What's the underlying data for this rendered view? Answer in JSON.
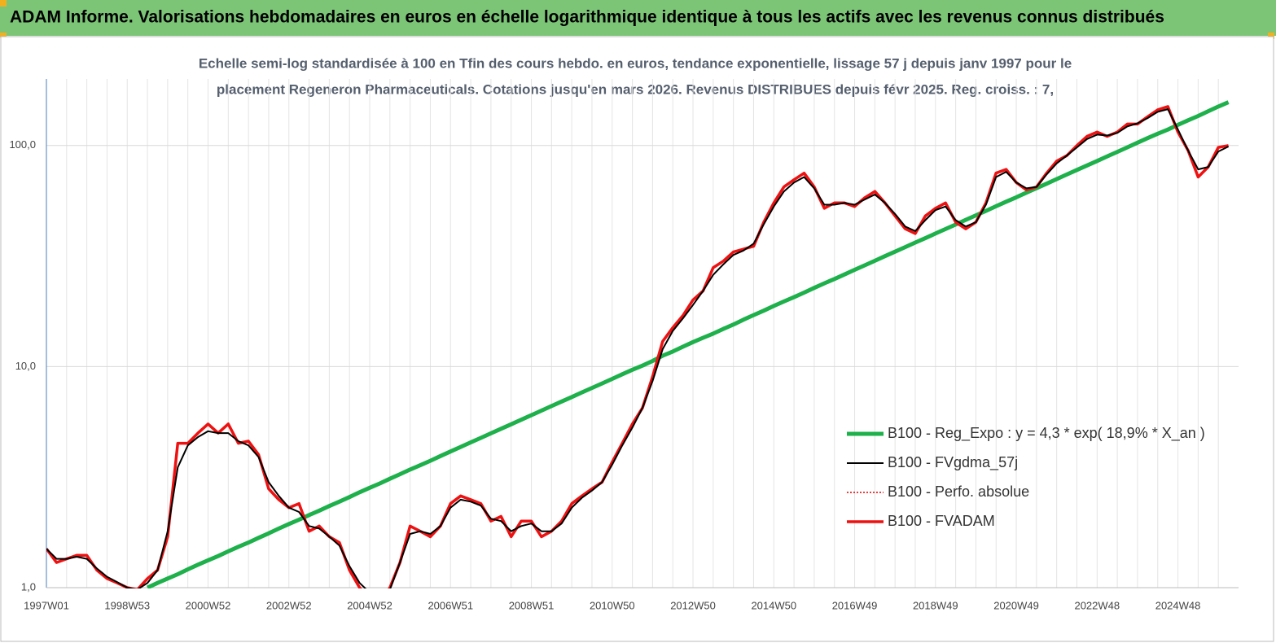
{
  "chart_data": {
    "type": "line",
    "header": "ADAM Informe. Valorisations hebdomadaires en euros en échelle logarithmique identique à tous les actifs avec les revenus connus distribués",
    "title": [
      "Echelle semi-log standardisée à 100 en Tfin des cours hebdo. en euros, tendance exponentielle, lissage 57 j depuis janv 1997 pour le",
      "placement Regeneron Pharmaceuticals. Cotations jusqu'en mars 2026. Revenus DISTRIBUES depuis févr 2025. Reg. croiss. : 7,"
    ],
    "log_scale": true,
    "grid": true,
    "legend_position": "right",
    "ylim": [
      1,
      200
    ],
    "yticks": [
      {
        "value": 1,
        "label": "1,0"
      },
      {
        "value": 10,
        "label": "10,0"
      },
      {
        "value": 100,
        "label": "100,0"
      }
    ],
    "categories": [
      "1997W01",
      null,
      null,
      null,
      null,
      null,
      null,
      null,
      "1998W53",
      null,
      null,
      null,
      null,
      null,
      null,
      null,
      "2000W52",
      null,
      null,
      null,
      null,
      null,
      null,
      null,
      "2002W52",
      null,
      null,
      null,
      null,
      null,
      null,
      null,
      "2004W52",
      null,
      null,
      null,
      null,
      null,
      null,
      null,
      "2006W51",
      null,
      null,
      null,
      null,
      null,
      null,
      null,
      "2008W51",
      null,
      null,
      null,
      null,
      null,
      null,
      null,
      "2010W50",
      null,
      null,
      null,
      null,
      null,
      null,
      null,
      "2012W50",
      null,
      null,
      null,
      null,
      null,
      null,
      null,
      "2014W50",
      null,
      null,
      null,
      null,
      null,
      null,
      null,
      "2016W49",
      null,
      null,
      null,
      null,
      null,
      null,
      null,
      "2018W49",
      null,
      null,
      null,
      null,
      null,
      null,
      null,
      "2020W49",
      null,
      null,
      null,
      null,
      null,
      null,
      null,
      "2022W48",
      null,
      null,
      null,
      null,
      null,
      null,
      null,
      "2024W48",
      null,
      null,
      null,
      null,
      null
    ],
    "series": [
      {
        "name": "B100 - Reg_Expo : y = 4,3 * exp( 18,9% *  X_an )",
        "color": "#1db04b",
        "width": 5,
        "style": "solid",
        "values": [
          null,
          null,
          null,
          null,
          null,
          null,
          null,
          null,
          null,
          null,
          1.0,
          1.05,
          1.1,
          1.15,
          1.21,
          1.27,
          1.33,
          1.39,
          1.46,
          1.53,
          1.6,
          1.68,
          1.76,
          1.85,
          1.94,
          2.03,
          2.13,
          2.23,
          2.34,
          2.45,
          2.57,
          2.7,
          2.83,
          2.96,
          3.11,
          3.26,
          3.42,
          3.58,
          3.75,
          3.94,
          4.13,
          4.33,
          4.54,
          4.76,
          4.99,
          5.23,
          5.48,
          5.75,
          6.03,
          6.32,
          6.63,
          6.95,
          7.28,
          7.64,
          8.01,
          8.39,
          8.8,
          9.23,
          9.67,
          10.1,
          10.6,
          11.2,
          11.7,
          12.3,
          12.9,
          13.5,
          14.1,
          14.8,
          15.5,
          16.3,
          17.1,
          17.9,
          18.8,
          19.7,
          20.6,
          21.6,
          22.7,
          23.8,
          24.9,
          26.1,
          27.4,
          28.7,
          30.1,
          31.6,
          33.1,
          34.7,
          36.4,
          38.1,
          40.0,
          41.9,
          43.9,
          46.1,
          48.3,
          50.6,
          53.1,
          55.7,
          58.3,
          61.2,
          64.1,
          67.2,
          70.5,
          73.9,
          77.5,
          81.2,
          85.1,
          89.3,
          93.6,
          98.1,
          103,
          108,
          113,
          118,
          124,
          130,
          136,
          143,
          150,
          157
        ]
      },
      {
        "name": "B100 - FVgdma_57j",
        "color": "#000000",
        "width": 2,
        "style": "solid",
        "values": [
          1.5,
          1.35,
          1.35,
          1.38,
          1.35,
          1.22,
          1.12,
          1.06,
          1.0,
          0.98,
          1.05,
          1.2,
          1.8,
          3.5,
          4.4,
          4.8,
          5.1,
          5.0,
          5.0,
          4.6,
          4.4,
          3.9,
          3.0,
          2.6,
          2.3,
          2.2,
          1.9,
          1.85,
          1.7,
          1.55,
          1.25,
          1.05,
          0.95,
          0.88,
          0.98,
          1.3,
          1.75,
          1.8,
          1.75,
          1.9,
          2.3,
          2.5,
          2.45,
          2.35,
          2.05,
          2.0,
          1.8,
          1.9,
          1.95,
          1.8,
          1.8,
          1.95,
          2.3,
          2.55,
          2.75,
          3.0,
          3.6,
          4.4,
          5.3,
          6.5,
          8.6,
          12,
          14.5,
          16.5,
          19,
          22,
          26,
          29,
          32,
          33.5,
          36,
          44,
          53,
          62,
          68,
          72,
          64,
          54,
          54,
          55,
          54,
          57,
          60,
          55,
          49,
          43,
          41,
          46,
          51,
          53,
          46,
          43,
          45,
          54,
          72,
          76,
          68,
          64,
          65,
          74,
          83,
          90,
          98,
          107,
          112,
          111,
          114,
          122,
          126,
          133,
          142,
          146,
          118,
          95,
          78,
          80,
          94,
          99
        ]
      },
      {
        "name": "B100 - Perfo. absolue",
        "color": "#e00000",
        "width": 1.5,
        "style": "dotted",
        "values": [
          1.5,
          1.3,
          1.35,
          1.4,
          1.4,
          1.2,
          1.1,
          1.05,
          1.0,
          0.98,
          1.1,
          1.2,
          1.7,
          4.5,
          4.5,
          5.0,
          5.5,
          5.0,
          5.5,
          4.5,
          4.6,
          4.0,
          2.8,
          2.5,
          2.3,
          2.4,
          1.8,
          1.9,
          1.7,
          1.6,
          1.2,
          1.0,
          0.9,
          0.85,
          1.0,
          1.3,
          1.9,
          1.8,
          1.7,
          1.9,
          2.4,
          2.6,
          2.5,
          2.4,
          2.0,
          2.1,
          1.7,
          2.0,
          2.0,
          1.7,
          1.8,
          2.0,
          2.4,
          2.6,
          2.8,
          3.0,
          3.7,
          4.5,
          5.5,
          6.5,
          9.0,
          13,
          15,
          17,
          20,
          22,
          28,
          30,
          33,
          34,
          35,
          45,
          55,
          65,
          70,
          75,
          65,
          52,
          55,
          55,
          53,
          58,
          62,
          55,
          48,
          42,
          40,
          48,
          52,
          55,
          45,
          42,
          45,
          55,
          75,
          78,
          68,
          63,
          65,
          75,
          85,
          90,
          100,
          110,
          115,
          110,
          115,
          125,
          125,
          135,
          145,
          150,
          115,
          95,
          72,
          80,
          98,
          100
        ]
      },
      {
        "name": "B100 - FVADAM",
        "color": "#ee1111",
        "width": 3.5,
        "style": "solid",
        "values": [
          1.5,
          1.3,
          1.35,
          1.4,
          1.4,
          1.2,
          1.1,
          1.05,
          1.0,
          0.98,
          1.1,
          1.2,
          1.7,
          4.5,
          4.5,
          5.0,
          5.5,
          5.0,
          5.5,
          4.5,
          4.6,
          4.0,
          2.8,
          2.5,
          2.3,
          2.4,
          1.8,
          1.9,
          1.7,
          1.6,
          1.2,
          1.0,
          0.9,
          0.85,
          1.0,
          1.3,
          1.9,
          1.8,
          1.7,
          1.9,
          2.4,
          2.6,
          2.5,
          2.4,
          2.0,
          2.1,
          1.7,
          2.0,
          2.0,
          1.7,
          1.8,
          2.0,
          2.4,
          2.6,
          2.8,
          3.0,
          3.7,
          4.5,
          5.5,
          6.5,
          9.0,
          13,
          15,
          17,
          20,
          22,
          28,
          30,
          33,
          34,
          35,
          45,
          55,
          65,
          70,
          75,
          65,
          52,
          55,
          55,
          53,
          58,
          62,
          55,
          48,
          42,
          40,
          48,
          52,
          55,
          45,
          42,
          45,
          55,
          75,
          78,
          68,
          63,
          65,
          75,
          85,
          90,
          100,
          110,
          115,
          110,
          115,
          125,
          125,
          135,
          145,
          150,
          115,
          95,
          72,
          80,
          98,
          100
        ]
      }
    ]
  }
}
